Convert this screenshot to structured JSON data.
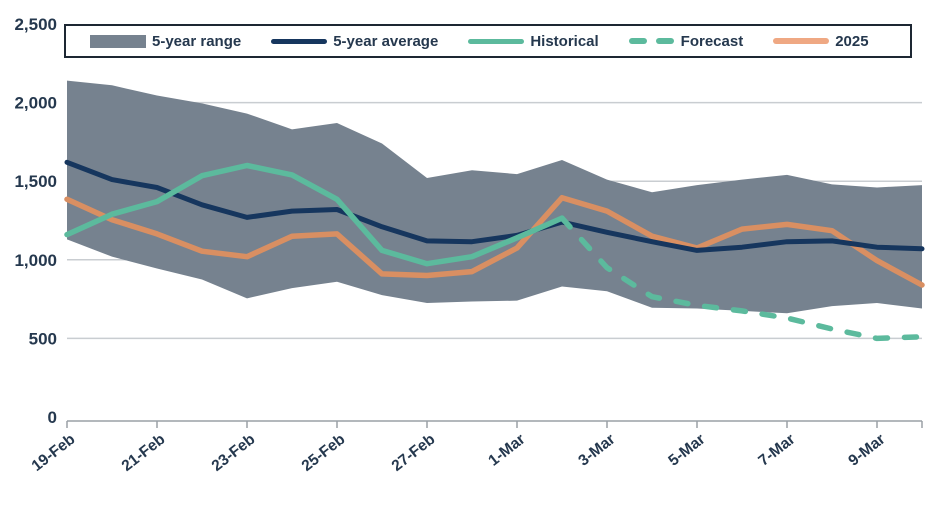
{
  "legend": {
    "items": [
      {
        "label": "5-year range",
        "swatch": "gray-band"
      },
      {
        "label": "5-year average",
        "swatch": "navy-line"
      },
      {
        "label": "Historical",
        "swatch": "teal-line"
      },
      {
        "label": "Forecast",
        "swatch": "teal-dashed-line"
      },
      {
        "label": "2025",
        "swatch": "orange-line"
      }
    ]
  },
  "y_axis": {
    "labels_top_to_bottom": [
      "2,500",
      "2,000",
      "1,500",
      "1,000",
      "500",
      "0"
    ]
  },
  "x_axis": {
    "labels": [
      "19-Feb",
      "21-Feb",
      "23-Feb",
      "25-Feb",
      "27-Feb",
      "1-Mar",
      "3-Mar",
      "5-Mar",
      "7-Mar",
      "9-Mar"
    ],
    "label_indices": [
      0,
      2,
      4,
      6,
      8,
      10,
      12,
      14,
      16,
      18
    ]
  },
  "colors": {
    "band": "#76828f",
    "average": "#16365e",
    "historical": "#5cba9d",
    "forecast": "#5cba9d",
    "y2025_line": "#d98f62",
    "y2025_legend": "#efa883",
    "gridline": "#c9cdd1",
    "axis": "#9aa0a6",
    "text": "#25384e",
    "legend_border": "#1d2733"
  },
  "chart_data": {
    "type": "area",
    "title": "",
    "xlabel": "",
    "ylabel": "",
    "ylim": [
      0,
      2500
    ],
    "yticks": [
      0,
      500,
      1000,
      1500,
      2000,
      2500
    ],
    "grid": "horizontal",
    "legend_position": "top",
    "n_points": 20,
    "x_tick_labels": [
      "19-Feb",
      "21-Feb",
      "23-Feb",
      "25-Feb",
      "27-Feb",
      "1-Mar",
      "3-Mar",
      "5-Mar",
      "7-Mar",
      "9-Mar"
    ],
    "x_tick_indices": [
      0,
      2,
      4,
      6,
      8,
      10,
      12,
      14,
      16,
      18
    ],
    "series": [
      {
        "name": "5-year range",
        "type": "band",
        "upper": [
          2140,
          2110,
          2045,
          1995,
          1930,
          1830,
          1870,
          1740,
          1520,
          1570,
          1545,
          1635,
          1510,
          1430,
          1475,
          1510,
          1540,
          1480,
          1460,
          1475
        ],
        "lower": [
          1130,
          1020,
          945,
          875,
          755,
          820,
          860,
          775,
          725,
          735,
          740,
          830,
          800,
          695,
          690,
          675,
          660,
          705,
          725,
          690
        ]
      },
      {
        "name": "5-year average",
        "type": "line",
        "values": [
          1620,
          1510,
          1460,
          1350,
          1270,
          1310,
          1320,
          1210,
          1120,
          1115,
          1155,
          1240,
          1175,
          1115,
          1060,
          1080,
          1115,
          1120,
          1080,
          1070
        ]
      },
      {
        "name": "Historical",
        "type": "line",
        "values": [
          1160,
          1290,
          1370,
          1535,
          1600,
          1540,
          1385,
          1060,
          975,
          1020,
          1140,
          1265,
          null,
          null,
          null,
          null,
          null,
          null,
          null,
          null
        ]
      },
      {
        "name": "Forecast",
        "type": "line",
        "dashed": true,
        "values": [
          null,
          null,
          null,
          null,
          null,
          null,
          null,
          null,
          null,
          null,
          null,
          1265,
          950,
          765,
          710,
          675,
          630,
          560,
          500,
          510
        ]
      },
      {
        "name": "2025",
        "type": "line",
        "values": [
          1385,
          1255,
          1165,
          1055,
          1020,
          1150,
          1165,
          910,
          900,
          925,
          1075,
          1395,
          1310,
          1150,
          1075,
          1195,
          1225,
          1185,
          995,
          840
        ]
      }
    ]
  }
}
